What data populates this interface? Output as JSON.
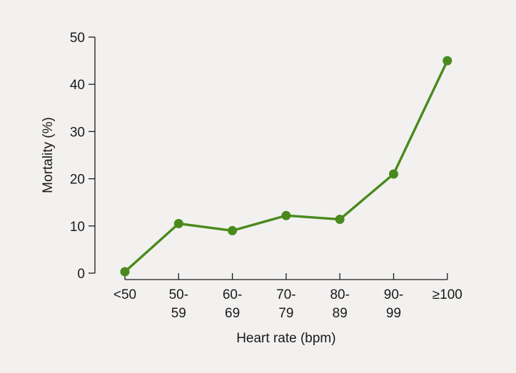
{
  "chart_data": {
    "type": "line",
    "title": "",
    "xlabel": "Heart rate (bpm)",
    "ylabel": "Mortality (%)",
    "categories": [
      "<50",
      "50-59",
      "60-69",
      "70-79",
      "80-89",
      "90-99",
      "≥100"
    ],
    "category_lines": [
      [
        "<50"
      ],
      [
        "50-",
        "59"
      ],
      [
        "60-",
        "69"
      ],
      [
        "70-",
        "79"
      ],
      [
        "80-",
        "89"
      ],
      [
        "90-",
        "99"
      ],
      [
        "≥100"
      ]
    ],
    "ylim": [
      0,
      50
    ],
    "yticks": [
      0,
      10,
      20,
      30,
      40,
      50
    ],
    "grid": false,
    "series": [
      {
        "values": [
          0.3,
          10.5,
          9.0,
          12.2,
          11.4,
          21.0,
          45.0
        ],
        "color": "#4a8a1c"
      }
    ]
  }
}
